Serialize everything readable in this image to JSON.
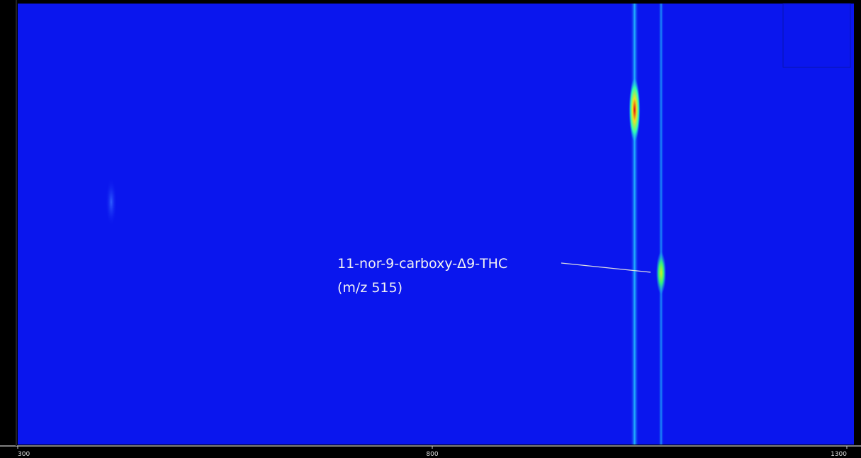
{
  "chart_data": {
    "type": "heatmap",
    "xlim": [
      300,
      1300
    ],
    "xticks": [
      300,
      800,
      1300
    ],
    "peaks": {
      "x": [
        1044,
        1076
      ]
    },
    "annotation": {
      "line1": "11-nor-9-carboxy-Δ9-THC",
      "line2": "(m/z 515)"
    },
    "background": "#0a16ee"
  }
}
